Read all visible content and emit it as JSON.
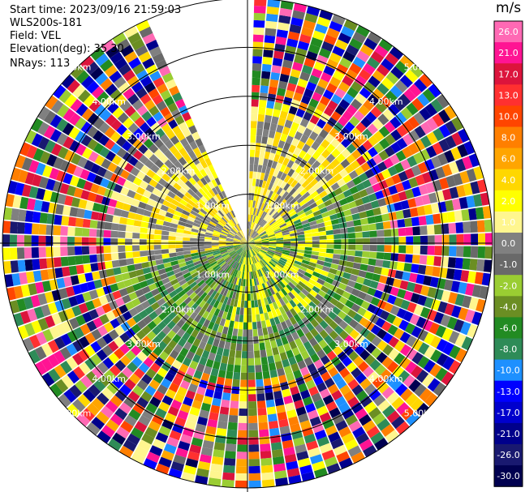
{
  "header": {
    "start_time": "Start time: 2023/09/16 21:59:03",
    "instrument": "WLS200s-181",
    "field": "Field: VEL",
    "elevation": "Elevation(deg): 35.30",
    "nrays": "NRays: 113"
  },
  "chart_data": {
    "type": "heatmap",
    "projection": "polar PPI",
    "field": "VEL",
    "units": "m/s",
    "ring_labels": [
      "1.00km",
      "2.00km",
      "3.00km",
      "4.00km",
      "5.00km"
    ],
    "max_range_km": 5.0,
    "nrays": 113,
    "missing_sector_deg": [
      -25,
      0
    ],
    "colorbar": {
      "unit": "m/s",
      "ticks": [
        "26.0",
        "21.0",
        "17.0",
        "13.0",
        "10.0",
        "8.0",
        "6.0",
        "4.0",
        "2.0",
        "1.0",
        "0.0",
        "-1.0",
        "-2.0",
        "-4.0",
        "-6.0",
        "-8.0",
        "-10.0",
        "-13.0",
        "-17.0",
        "-21.0",
        "-26.0",
        "-30.0"
      ],
      "colors": [
        "#ff69b4",
        "#ff1493",
        "#dc143c",
        "#ff3030",
        "#ff4500",
        "#ff7f00",
        "#ffa500",
        "#ffd700",
        "#ffff00",
        "#fff68f",
        "#808080",
        "#696969",
        "#9acd32",
        "#6b8e23",
        "#228b22",
        "#2e8b57",
        "#1e90ff",
        "#0000ff",
        "#0000cd",
        "#00008b",
        "#191970",
        "#000050"
      ]
    }
  }
}
